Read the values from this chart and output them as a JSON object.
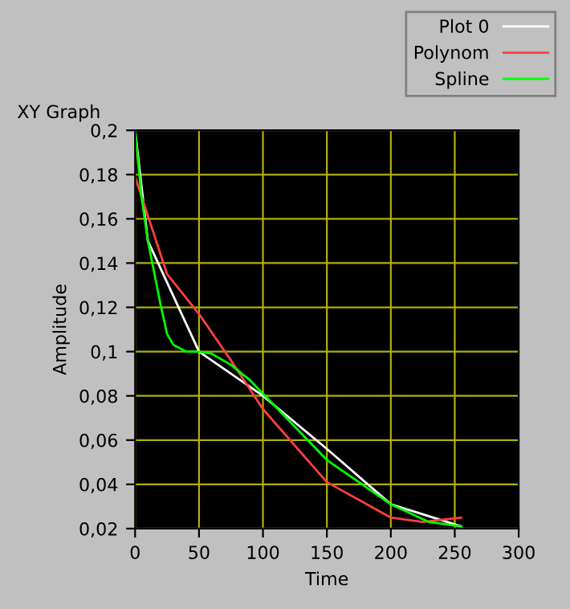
{
  "chart_data": {
    "type": "line",
    "title": "XY Graph",
    "xlabel": "Time",
    "ylabel": "Amplitude",
    "xlim": [
      0,
      300
    ],
    "xticks": [
      0,
      50,
      100,
      150,
      200,
      250,
      300
    ],
    "ylim": [
      0.02,
      0.2
    ],
    "yticks": [
      {
        "value": 0.02,
        "label": "0,02"
      },
      {
        "value": 0.04,
        "label": "0,04"
      },
      {
        "value": 0.06,
        "label": "0,06"
      },
      {
        "value": 0.08,
        "label": "0,08"
      },
      {
        "value": 0.1,
        "label": "0,1"
      },
      {
        "value": 0.12,
        "label": "0,12"
      },
      {
        "value": 0.14,
        "label": "0,14"
      },
      {
        "value": 0.16,
        "label": "0,16"
      },
      {
        "value": 0.18,
        "label": "0,18"
      },
      {
        "value": 0.2,
        "label": "0,2"
      }
    ],
    "grid": true,
    "legend": "top right",
    "marker": "none",
    "line_style": "solid",
    "series": [
      {
        "name": "Plot 0",
        "color": "#ffffff",
        "x": [
          0,
          10,
          50,
          100,
          150,
          200,
          255
        ],
        "values": [
          0.2,
          0.15,
          0.1,
          0.08,
          0.056,
          0.031,
          0.021
        ]
      },
      {
        "name": "Polynom",
        "color": "#ff4040",
        "x": [
          0,
          25,
          50,
          75,
          100,
          150,
          200,
          225,
          255
        ],
        "values": [
          0.179,
          0.135,
          0.117,
          0.096,
          0.074,
          0.041,
          0.025,
          0.023,
          0.025
        ]
      },
      {
        "name": "Spline",
        "color": "#00ff00",
        "x": [
          0,
          5,
          10,
          20,
          25,
          30,
          40,
          50,
          60,
          75,
          90,
          100,
          150,
          200,
          230,
          255
        ],
        "values": [
          0.2,
          0.17,
          0.15,
          0.121,
          0.108,
          0.103,
          0.1,
          0.1,
          0.099,
          0.094,
          0.087,
          0.081,
          0.051,
          0.031,
          0.023,
          0.021
        ]
      }
    ]
  }
}
